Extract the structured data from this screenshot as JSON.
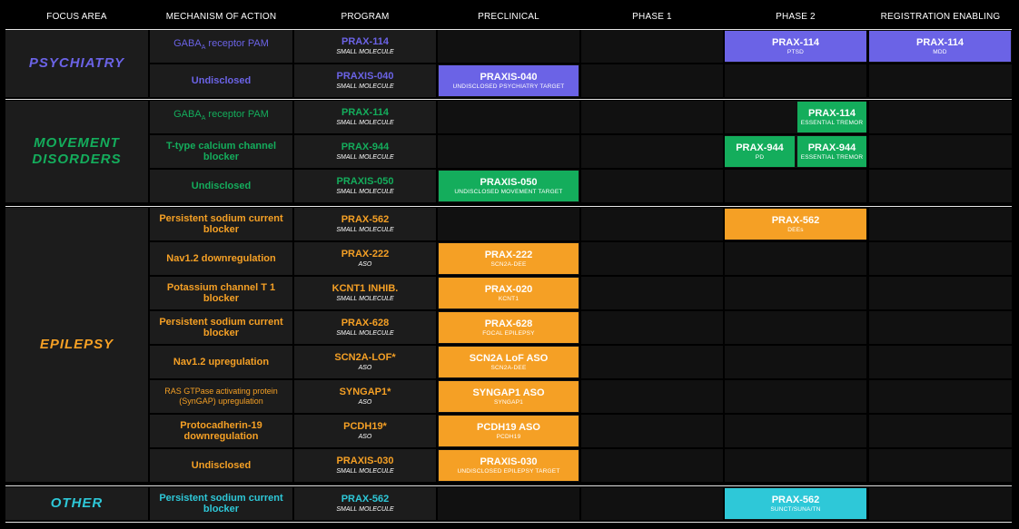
{
  "headers": [
    "FOCUS AREA",
    "MECHANISM OF ACTION",
    "PROGRAM",
    "PRECLINICAL",
    "PHASE 1",
    "PHASE 2",
    "REGISTRATION ENABLING"
  ],
  "colors": {
    "psychiatry": "#6b63e6",
    "movement": "#14ad5c",
    "epilepsy": "#f5a025",
    "other": "#2ec8d8"
  },
  "groups": [
    {
      "label_lines": [
        "PSYCHIATRY"
      ],
      "color": "psychiatry",
      "rows": [
        {
          "mech_main": "GABA",
          "mech_sub": "A",
          "mech_rest": " receptor PAM",
          "program": "PRAX-114",
          "type": "SMALL MOLECULE"
        },
        {
          "mech": "Undisclosed",
          "program": "PRAXIS-040",
          "type": "SMALL MOLECULE"
        }
      ]
    },
    {
      "label_lines": [
        "MOVEMENT",
        "DISORDERS"
      ],
      "color": "movement",
      "rows": [
        {
          "mech_main": "GABA",
          "mech_sub": "A",
          "mech_rest": " receptor PAM",
          "program": "PRAX-114",
          "type": "SMALL MOLECULE"
        },
        {
          "mech": "T-type calcium channel blocker",
          "program": "PRAX-944",
          "type": "SMALL MOLECULE"
        },
        {
          "mech": "Undisclosed",
          "program": "PRAXIS-050",
          "type": "SMALL MOLECULE"
        }
      ]
    },
    {
      "label_lines": [
        "EPILEPSY"
      ],
      "color": "epilepsy",
      "rows": [
        {
          "mech": "Persistent sodium current blocker",
          "program": "PRAX-562",
          "type": "SMALL MOLECULE"
        },
        {
          "mech": "Nav1.2 downregulation",
          "program": "PRAX-222",
          "type": "ASO"
        },
        {
          "mech": "Potassium channel T 1 blocker",
          "program": "KCNT1 INHIB.",
          "type": "SMALL MOLECULE"
        },
        {
          "mech": "Persistent sodium current blocker",
          "program": "PRAX-628",
          "type": "SMALL MOLECULE"
        },
        {
          "mech": "Nav1.2 upregulation",
          "program": "SCN2A-LOF*",
          "type": "ASO"
        },
        {
          "mech": "RAS GTPase activating protein (SynGAP) upregulation",
          "program": "SYNGAP1*",
          "type": "ASO",
          "small": true
        },
        {
          "mech": "Protocadherin-19 downregulation",
          "program": "PCDH19*",
          "type": "ASO"
        },
        {
          "mech": "Undisclosed",
          "program": "PRAXIS-030",
          "type": "SMALL MOLECULE"
        }
      ]
    },
    {
      "label_lines": [
        "OTHER"
      ],
      "color": "other",
      "rows": [
        {
          "mech": "Persistent sodium current blocker",
          "program": "PRAX-562",
          "type": "SMALL MOLECULE"
        }
      ]
    }
  ],
  "bars": [
    {
      "row": 0,
      "stage": "phase2",
      "title": "PRAX-114",
      "sub": "PTSD",
      "color": "psychiatry"
    },
    {
      "row": 0,
      "stage": "registration",
      "title": "PRAX-114",
      "sub": "MDD",
      "color": "psychiatry"
    },
    {
      "row": 1,
      "stage": "preclinical",
      "title": "PRAXIS-040",
      "sub": "UNDISCLOSED PSYCHIATRY TARGET",
      "color": "psychiatry"
    },
    {
      "row": 2,
      "stage": "phase2-right",
      "title": "PRAX-114",
      "sub": "ESSENTIAL TREMOR",
      "color": "movement"
    },
    {
      "row": 3,
      "stage": "phase2-left",
      "title": "PRAX-944",
      "sub": "PD",
      "color": "movement"
    },
    {
      "row": 3,
      "stage": "phase2-right",
      "title": "PRAX-944",
      "sub": "ESSENTIAL TREMOR",
      "color": "movement"
    },
    {
      "row": 4,
      "stage": "preclinical",
      "title": "PRAXIS-050",
      "sub": "UNDISCLOSED MOVEMENT TARGET",
      "color": "movement"
    },
    {
      "row": 5,
      "stage": "phase2",
      "title": "PRAX-562",
      "sub": "DEEs",
      "color": "epilepsy"
    },
    {
      "row": 6,
      "stage": "preclinical",
      "title": "PRAX-222",
      "sub": "SCN2A-DEE",
      "color": "epilepsy"
    },
    {
      "row": 7,
      "stage": "preclinical",
      "title": "PRAX-020",
      "sub": "KCNT1",
      "color": "epilepsy"
    },
    {
      "row": 8,
      "stage": "preclinical",
      "title": "PRAX-628",
      "sub": "FOCAL EPILEPSY",
      "color": "epilepsy"
    },
    {
      "row": 9,
      "stage": "preclinical",
      "title": "SCN2A LoF ASO",
      "sub": "SCN2A-DEE",
      "color": "epilepsy"
    },
    {
      "row": 10,
      "stage": "preclinical",
      "title": "SYNGAP1 ASO",
      "sub": "SYNGAP1",
      "color": "epilepsy"
    },
    {
      "row": 11,
      "stage": "preclinical",
      "title": "PCDH19 ASO",
      "sub": "PCDH19",
      "color": "epilepsy"
    },
    {
      "row": 12,
      "stage": "preclinical",
      "title": "PRAXIS-030",
      "sub": "UNDISCLOSED EPILEPSY TARGET",
      "color": "epilepsy"
    },
    {
      "row": 13,
      "stage": "phase2",
      "title": "PRAX-562",
      "sub": "SUNCT/SUNA/TN",
      "color": "other"
    }
  ]
}
